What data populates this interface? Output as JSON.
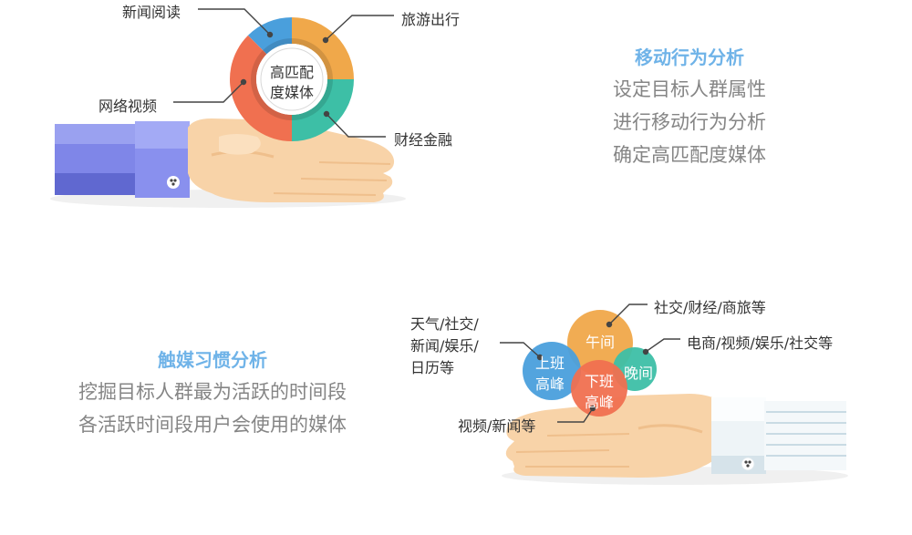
{
  "section1": {
    "title": "移动行为分析",
    "lines": [
      "设定目标人群属性",
      "进行移动行为分析",
      "确定高匹配度媒体"
    ],
    "donut": {
      "center_label": "高匹\n配\n度媒体",
      "center_line1": "高匹配",
      "center_line2": "度媒体",
      "segments": [
        {
          "label": "新闻阅读",
          "value": 12.5,
          "color": "#4a9fdc"
        },
        {
          "label": "旅游出行",
          "value": 25,
          "color": "#f0a84a"
        },
        {
          "label": "财经金融",
          "value": 25,
          "color": "#3dbfa6"
        },
        {
          "label": "网络视频",
          "value": 37.5,
          "color": "#f07050"
        }
      ]
    }
  },
  "section2": {
    "title": "触媒习惯分析",
    "lines": [
      "挖掘目标人群最为活跃的时间段",
      "各活跃时间段用户会使用的媒体"
    ],
    "bubbles": {
      "noon": {
        "label": "午间",
        "callout": "社交/财经/商旅等",
        "color": "#f0a84a"
      },
      "morning": {
        "label_line1": "上班",
        "label_line2": "高峰",
        "callout_line1": "天气/社交/",
        "callout_line2": "新闻/娱乐/",
        "callout_line3": "日历等",
        "color": "#4a9fdc"
      },
      "evening": {
        "label": "晚间",
        "callout": "电商/视频/娱乐/社交等",
        "color": "#3dbfa6"
      },
      "offwork": {
        "label_line1": "下班",
        "label_line2": "高峰",
        "callout": "视频/新闻等",
        "color": "#f07050"
      }
    }
  },
  "colors": {
    "skin": "#f8d3a8",
    "skin_shade": "#efbf8c",
    "sleeve_blue": "#7f86e8",
    "sleeve_dark": "#6068d0",
    "cuff_white": "#eef4f7",
    "leader_line": "#444444"
  }
}
